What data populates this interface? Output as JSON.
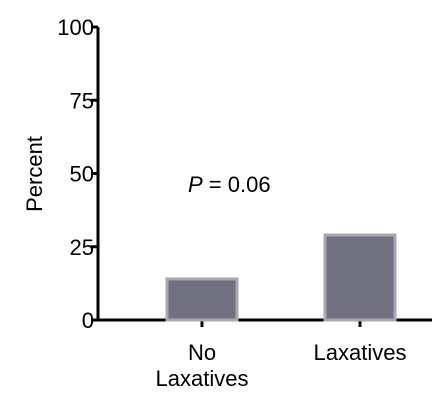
{
  "chart_data": {
    "type": "bar",
    "categories": [
      "No\nLaxatives",
      "Laxatives"
    ],
    "values": [
      14,
      29
    ],
    "ylabel": "Percent",
    "xlabel": "",
    "ylim": [
      0,
      100
    ],
    "yticks": [
      0,
      25,
      50,
      75,
      100
    ],
    "annotation": {
      "italic": "P",
      "rest": " = 0.06"
    },
    "bar_fill": "#717080",
    "bar_edge": "#a9a8b0",
    "grid": false
  }
}
